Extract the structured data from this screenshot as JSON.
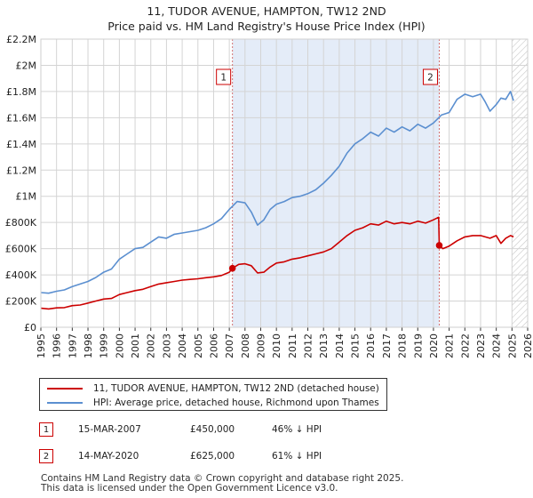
{
  "chart_data": {
    "type": "line",
    "title": "11, TUDOR AVENUE, HAMPTON, TW12 2ND",
    "subtitle": "Price paid vs. HM Land Registry's House Price Index (HPI)",
    "xlabel": "",
    "ylabel": "",
    "xlim": [
      1995,
      2026
    ],
    "ylim": [
      0,
      2200000
    ],
    "x_ticks": [
      1995,
      1996,
      1997,
      1998,
      1999,
      2000,
      2001,
      2002,
      2003,
      2004,
      2005,
      2006,
      2007,
      2008,
      2009,
      2010,
      2011,
      2012,
      2013,
      2014,
      2015,
      2016,
      2017,
      2018,
      2019,
      2020,
      2021,
      2022,
      2023,
      2024,
      2025,
      2026
    ],
    "y_ticks": [
      0,
      200000,
      400000,
      600000,
      800000,
      1000000,
      1200000,
      1400000,
      1600000,
      1800000,
      2000000,
      2200000
    ],
    "y_tick_labels": [
      "£0",
      "£200K",
      "£400K",
      "£600K",
      "£800K",
      "£1M",
      "£1.2M",
      "£1.4M",
      "£1.6M",
      "£1.8M",
      "£2M",
      "£2.2M"
    ],
    "grid": true,
    "shaded_region": {
      "from": 2007.2,
      "to": 2020.37,
      "color": "#e4ecf8"
    },
    "hatched_region": {
      "from": 2025.0,
      "to": 2026.0
    },
    "series": [
      {
        "name": "11, TUDOR AVENUE, HAMPTON, TW12 2ND (detached house)",
        "color": "#cc0000",
        "x": [
          1995.0,
          1995.5,
          1996.0,
          1996.5,
          1997.0,
          1997.5,
          1998.0,
          1998.5,
          1999.0,
          1999.5,
          2000.0,
          2000.5,
          2001.0,
          2001.5,
          2002.0,
          2002.5,
          2003.0,
          2003.5,
          2004.0,
          2004.5,
          2005.0,
          2005.5,
          2006.0,
          2006.5,
          2007.0,
          2007.2,
          2007.6,
          2008.0,
          2008.4,
          2008.8,
          2009.2,
          2009.6,
          2010.0,
          2010.5,
          2011.0,
          2011.5,
          2012.0,
          2012.5,
          2013.0,
          2013.5,
          2014.0,
          2014.5,
          2015.0,
          2015.5,
          2016.0,
          2016.5,
          2017.0,
          2017.5,
          2018.0,
          2018.5,
          2019.0,
          2019.5,
          2020.0,
          2020.33,
          2020.37,
          2020.6,
          2021.0,
          2021.5,
          2022.0,
          2022.5,
          2023.0,
          2023.3,
          2023.6,
          2024.0,
          2024.3,
          2024.6,
          2024.9,
          2025.1
        ],
        "values": [
          145000,
          140000,
          148000,
          150000,
          165000,
          170000,
          185000,
          200000,
          215000,
          220000,
          250000,
          265000,
          280000,
          290000,
          310000,
          330000,
          340000,
          350000,
          360000,
          365000,
          370000,
          378000,
          385000,
          395000,
          420000,
          450000,
          480000,
          485000,
          470000,
          415000,
          420000,
          460000,
          490000,
          500000,
          520000,
          530000,
          545000,
          560000,
          575000,
          600000,
          650000,
          700000,
          740000,
          760000,
          790000,
          780000,
          810000,
          790000,
          800000,
          790000,
          810000,
          795000,
          820000,
          840000,
          625000,
          600000,
          620000,
          660000,
          690000,
          700000,
          700000,
          690000,
          680000,
          700000,
          640000,
          680000,
          700000,
          690000
        ]
      },
      {
        "name": "HPI: Average price, detached house, Richmond upon Thames",
        "color": "#5b8fd0",
        "x": [
          1995.0,
          1995.5,
          1996.0,
          1996.5,
          1997.0,
          1997.5,
          1998.0,
          1998.5,
          1999.0,
          1999.5,
          2000.0,
          2000.5,
          2001.0,
          2001.5,
          2002.0,
          2002.5,
          2003.0,
          2003.5,
          2004.0,
          2004.5,
          2005.0,
          2005.5,
          2006.0,
          2006.5,
          2007.0,
          2007.5,
          2008.0,
          2008.4,
          2008.8,
          2009.2,
          2009.6,
          2010.0,
          2010.5,
          2011.0,
          2011.5,
          2012.0,
          2012.5,
          2013.0,
          2013.5,
          2014.0,
          2014.5,
          2015.0,
          2015.5,
          2016.0,
          2016.5,
          2017.0,
          2017.5,
          2018.0,
          2018.5,
          2019.0,
          2019.5,
          2020.0,
          2020.5,
          2021.0,
          2021.5,
          2022.0,
          2022.5,
          2023.0,
          2023.3,
          2023.6,
          2024.0,
          2024.3,
          2024.6,
          2024.9,
          2025.1
        ],
        "values": [
          265000,
          260000,
          275000,
          285000,
          310000,
          330000,
          350000,
          380000,
          420000,
          445000,
          520000,
          560000,
          600000,
          610000,
          650000,
          690000,
          680000,
          710000,
          720000,
          730000,
          740000,
          760000,
          790000,
          830000,
          900000,
          960000,
          950000,
          880000,
          780000,
          820000,
          900000,
          940000,
          960000,
          990000,
          1000000,
          1020000,
          1050000,
          1100000,
          1160000,
          1230000,
          1330000,
          1400000,
          1440000,
          1490000,
          1460000,
          1520000,
          1490000,
          1530000,
          1500000,
          1550000,
          1520000,
          1560000,
          1620000,
          1640000,
          1740000,
          1780000,
          1760000,
          1780000,
          1720000,
          1650000,
          1700000,
          1750000,
          1740000,
          1800000,
          1730000
        ]
      }
    ],
    "sales": [
      {
        "label": "1",
        "x": 2007.2,
        "value": 450000
      },
      {
        "label": "2",
        "x": 2020.37,
        "value": 625000
      }
    ]
  },
  "legend": {
    "property_label": "11, TUDOR AVENUE, HAMPTON, TW12 2ND (detached house)",
    "hpi_label": "HPI: Average price, detached house, Richmond upon Thames"
  },
  "sales_table": [
    {
      "badge": "1",
      "date": "15-MAR-2007",
      "price": "£450,000",
      "hpi": "46% ↓ HPI"
    },
    {
      "badge": "2",
      "date": "14-MAY-2020",
      "price": "£625,000",
      "hpi": "61% ↓ HPI"
    }
  ],
  "footer": {
    "line1": "Contains HM Land Registry data © Crown copyright and database right 2025.",
    "line2": "This data is licensed under the Open Government Licence v3.0."
  }
}
